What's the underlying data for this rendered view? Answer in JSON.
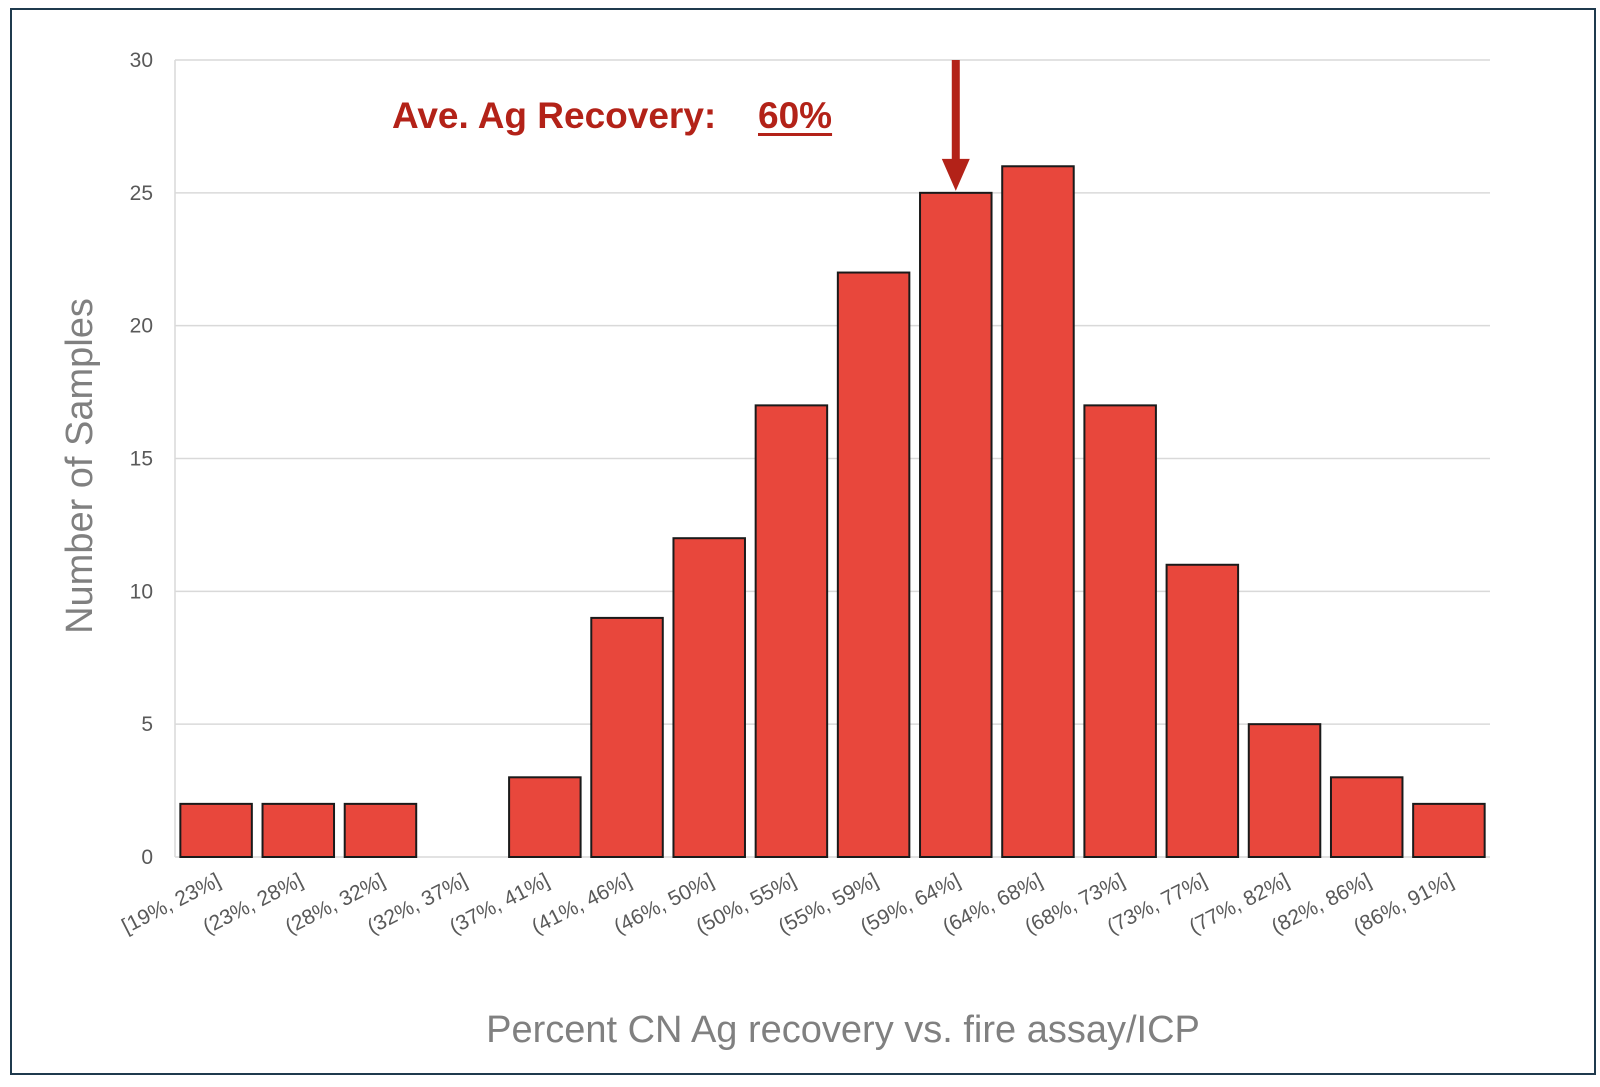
{
  "chart_data": {
    "type": "bar",
    "title": "",
    "xlabel": "Percent CN Ag recovery vs. fire assay/ICP",
    "ylabel": "Number of Samples",
    "categories": [
      "[19%, 23%]",
      "(23%, 28%]",
      "(28%, 32%]",
      "(32%, 37%]",
      "(37%, 41%]",
      "(41%, 46%]",
      "(46%, 50%]",
      "(50%, 55%]",
      "(55%, 59%]",
      "(59%, 64%]",
      "(64%, 68%]",
      "(68%, 73%]",
      "(73%, 77%]",
      "(77%, 82%]",
      "(82%, 86%]",
      "(86%, 91%]"
    ],
    "values": [
      2,
      2,
      2,
      0,
      3,
      9,
      12,
      17,
      22,
      25,
      26,
      17,
      11,
      5,
      3,
      2
    ],
    "ylim": [
      0,
      30
    ],
    "yticks": [
      0,
      5,
      10,
      15,
      20,
      25,
      30
    ],
    "grid": true,
    "legend": "none",
    "bar_color": "#e8473c",
    "bar_edge_color": "#1a1a1a",
    "annotation": {
      "label": "Ave. Ag Recovery:",
      "value": "60%",
      "color": "#b32218",
      "arrow_target_category": "(59%, 64%]"
    }
  }
}
